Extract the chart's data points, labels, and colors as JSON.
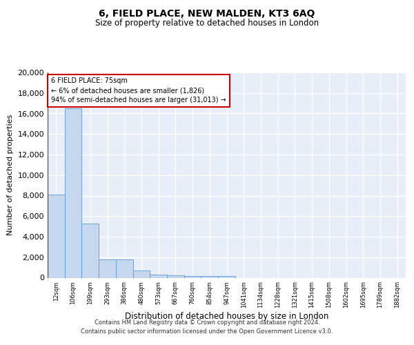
{
  "title": "6, FIELD PLACE, NEW MALDEN, KT3 6AQ",
  "subtitle": "Size of property relative to detached houses in London",
  "xlabel": "Distribution of detached houses by size in London",
  "ylabel": "Number of detached properties",
  "bins": [
    "12sqm",
    "106sqm",
    "199sqm",
    "293sqm",
    "386sqm",
    "480sqm",
    "573sqm",
    "667sqm",
    "760sqm",
    "854sqm",
    "947sqm",
    "1041sqm",
    "1134sqm",
    "1228sqm",
    "1321sqm",
    "1415sqm",
    "1508sqm",
    "1602sqm",
    "1695sqm",
    "1789sqm",
    "1882sqm"
  ],
  "bar_heights": [
    8100,
    16500,
    5300,
    1750,
    1750,
    700,
    300,
    220,
    200,
    170,
    150,
    0,
    0,
    0,
    0,
    0,
    0,
    0,
    0,
    0,
    0
  ],
  "bar_color": "#c5d8f0",
  "bar_edge_color": "#5b9bd5",
  "marker_color": "#cc0000",
  "annotation_text": "6 FIELD PLACE: 75sqm\n← 6% of detached houses are smaller (1,826)\n94% of semi-detached houses are larger (31,013) →",
  "annotation_box_color": "#ffffff",
  "annotation_box_edge": "#cc0000",
  "ylim": [
    0,
    20000
  ],
  "yticks": [
    0,
    2000,
    4000,
    6000,
    8000,
    10000,
    12000,
    14000,
    16000,
    18000,
    20000
  ],
  "background_color": "#e8eef8",
  "grid_color": "#ffffff",
  "footer_line1": "Contains HM Land Registry data © Crown copyright and database right 2024.",
  "footer_line2": "Contains public sector information licensed under the Open Government Licence v3.0."
}
